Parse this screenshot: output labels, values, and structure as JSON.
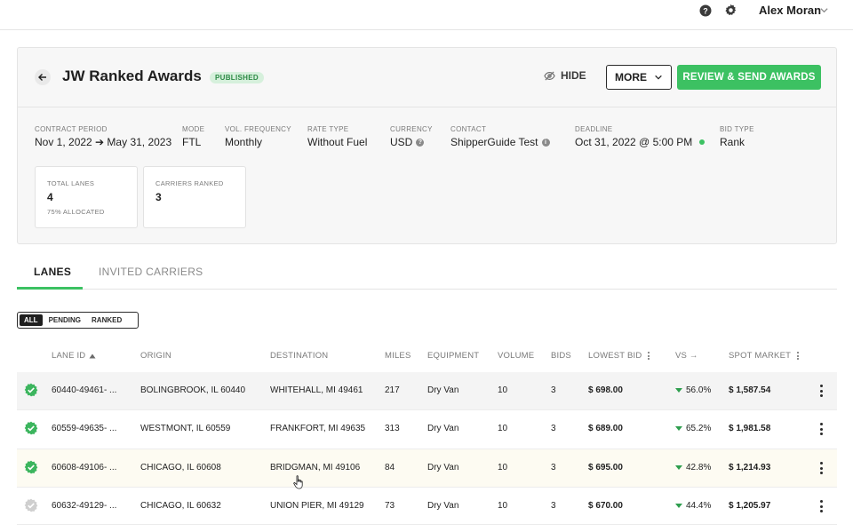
{
  "header": {
    "user_name": "Alex Moran",
    "help_icon": "question-circle-icon",
    "settings_icon": "gear-icon"
  },
  "page": {
    "title": "JW Ranked Awards",
    "status_badge": "PUBLISHED",
    "hide_label": "HIDE",
    "more_label": "MORE",
    "review_label": "REVIEW & SEND AWARDS",
    "accent_color": "#3cc162"
  },
  "meta": {
    "contract_period_label": "CONTRACT PERIOD",
    "contract_period_value": "Nov 1, 2022 ➔ May 31, 2023",
    "mode_label": "MODE",
    "mode_value": "FTL",
    "vol_frequency_label": "VOL. FREQUENCY",
    "vol_frequency_value": "Monthly",
    "rate_type_label": "RATE TYPE",
    "rate_type_value": "Without Fuel",
    "currency_label": "CURRENCY",
    "currency_value": "USD",
    "contact_label": "CONTACT",
    "contact_value": "ShipperGuide Test",
    "deadline_label": "DEADLINE",
    "deadline_value": "Oct 31, 2022 @ 5:00 PM",
    "bid_type_label": "BID TYPE",
    "bid_type_value": "Rank"
  },
  "stats": {
    "total_lanes_label": "TOTAL LANES",
    "total_lanes_value": "4",
    "total_lanes_sub": "75% ALLOCATED",
    "carriers_ranked_label": "CARRIERS RANKED",
    "carriers_ranked_value": "3"
  },
  "tabs": {
    "lanes": "LANES",
    "invited_carriers": "INVITED CARRIERS"
  },
  "filter": {
    "all": "ALL",
    "pending": "PENDING",
    "ranked": "RANKED"
  },
  "table": {
    "columns": {
      "lane_id": "LANE ID",
      "origin": "ORIGIN",
      "destination": "DESTINATION",
      "miles": "MILES",
      "equipment": "EQUIPMENT",
      "volume": "VOLUME",
      "bids": "BIDS",
      "lowest_bid": "LOWEST BID",
      "vs": "VS →",
      "spot_market": "SPOT MARKET"
    },
    "rows": [
      {
        "lane_id": "60440-49461- ...",
        "origin": "BOLINGBROOK, IL 60440",
        "destination": "WHITEHALL, MI 49461",
        "miles": "217",
        "equipment": "Dry Van",
        "volume": "10",
        "bids": "3",
        "lowest_bid": "$ 698.00",
        "vs": "56.0%",
        "spot_market": "$ 1,587.54",
        "awarded": true
      },
      {
        "lane_id": "60559-49635- ...",
        "origin": "WESTMONT, IL 60559",
        "destination": "FRANKFORT, MI 49635",
        "miles": "313",
        "equipment": "Dry Van",
        "volume": "10",
        "bids": "3",
        "lowest_bid": "$ 689.00",
        "vs": "65.2%",
        "spot_market": "$ 1,981.58",
        "awarded": true
      },
      {
        "lane_id": "60608-49106- ...",
        "origin": "CHICAGO, IL 60608",
        "destination": "BRIDGMAN, MI 49106",
        "miles": "84",
        "equipment": "Dry Van",
        "volume": "10",
        "bids": "3",
        "lowest_bid": "$ 695.00",
        "vs": "42.8%",
        "spot_market": "$ 1,214.93",
        "awarded": true
      },
      {
        "lane_id": "60632-49129- ...",
        "origin": "CHICAGO, IL 60632",
        "destination": "UNION PIER, MI 49129",
        "miles": "73",
        "equipment": "Dry Van",
        "volume": "10",
        "bids": "3",
        "lowest_bid": "$ 670.00",
        "vs": "44.4%",
        "spot_market": "$ 1,205.97",
        "awarded": false
      }
    ]
  }
}
